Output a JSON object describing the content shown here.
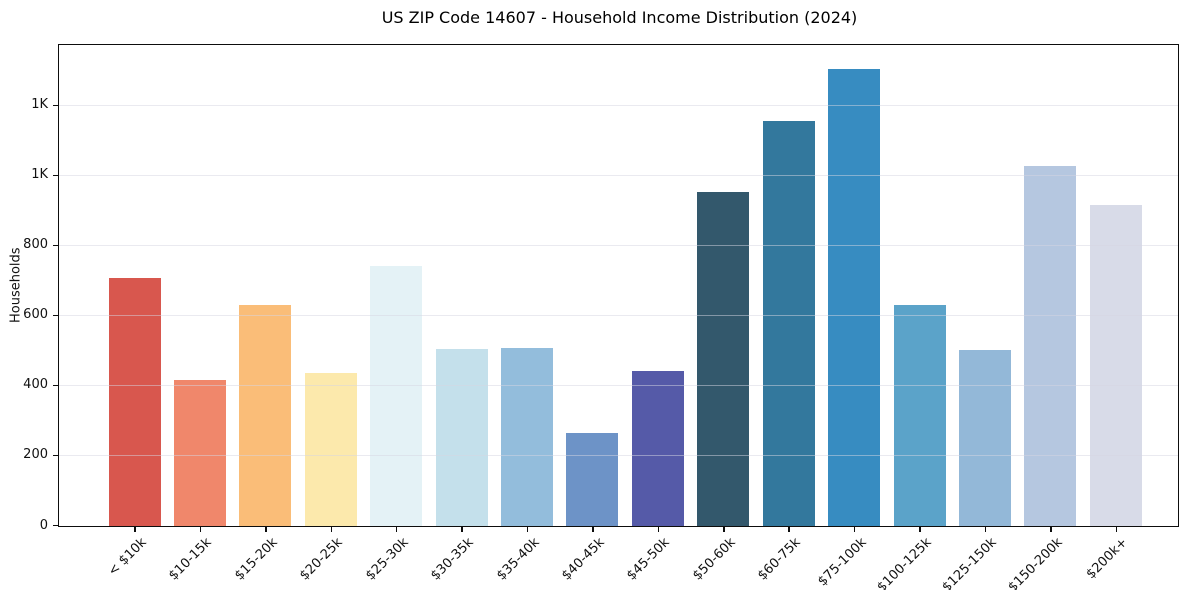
{
  "figure": {
    "background": "#ffffff"
  },
  "chart_data": {
    "type": "bar",
    "title": "US ZIP Code 14607 - Household Income Distribution (2024)",
    "xlabel": "",
    "ylabel": "Households",
    "categories": [
      "< $10k",
      "$10-15k",
      "$15-20k",
      "$20-25k",
      "$25-30k",
      "$30-35k",
      "$35-40k",
      "$40-45k",
      "$45-50k",
      "$50-60k",
      "$60-75k",
      "$75-100k",
      "$100-125k",
      "$125-150k",
      "$150-200k",
      "$200k+"
    ],
    "values": [
      707,
      416,
      630,
      437,
      743,
      506,
      508,
      265,
      444,
      954,
      1157,
      1305,
      630,
      504,
      1028,
      918
    ],
    "bar_colors": [
      "#d8574e",
      "#f0876b",
      "#fabd78",
      "#fce9ac",
      "#e4f2f6",
      "#c4e0eb",
      "#93bddc",
      "#6d93c7",
      "#555aa8",
      "#33586c",
      "#33789d",
      "#378cc1",
      "#5ba3c9",
      "#93b8d8",
      "#b5c7e0",
      "#d8dbe8"
    ],
    "ytick_values": [
      0,
      200,
      400,
      600,
      800,
      1000,
      1200
    ],
    "ytick_labels": [
      "0",
      "200",
      "400",
      "600",
      "800",
      "1K",
      "1K"
    ],
    "ylim": [
      0,
      1371
    ],
    "grid": true,
    "legend": "none",
    "axis_color": "#0d0d0d",
    "grid_color": "#ececf2",
    "text_color": "#111111"
  }
}
